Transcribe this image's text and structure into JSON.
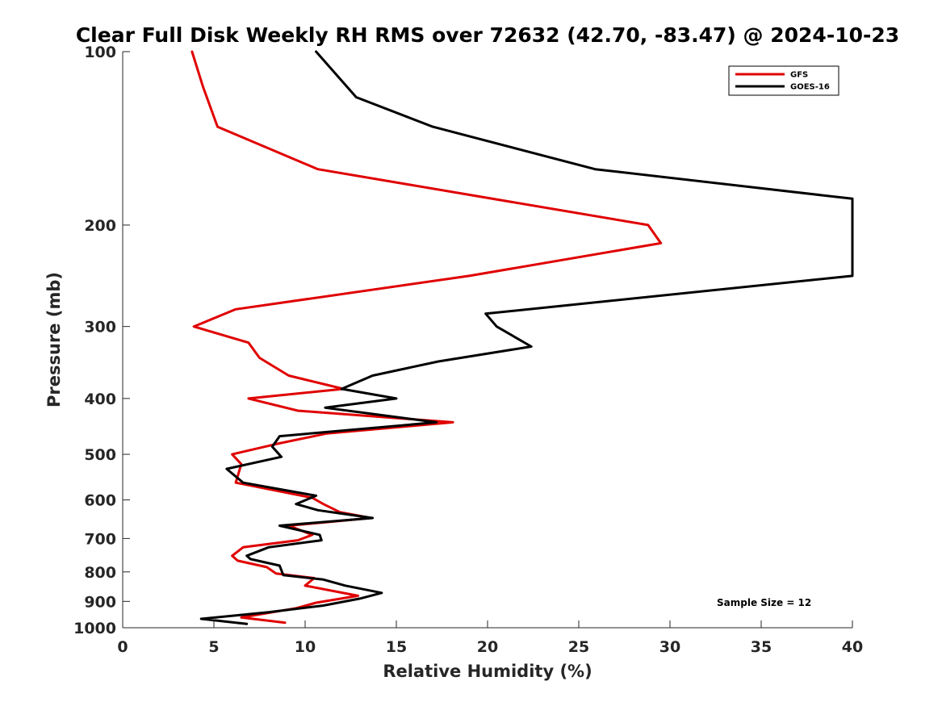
{
  "chart_data": {
    "type": "line",
    "title": "Clear Full Disk Weekly RH RMS over 72632 (42.70, -83.47) @ 2024-10-23",
    "xlabel": "Relative Humidity (%)",
    "ylabel": "Pressure (mb)",
    "xlim": [
      0,
      40
    ],
    "ylim": [
      100,
      1000
    ],
    "y_scale": "log",
    "y_reversed": true,
    "x_ticks": [
      0,
      5,
      10,
      15,
      20,
      25,
      30,
      35,
      40
    ],
    "y_ticks": [
      100,
      200,
      300,
      400,
      500,
      600,
      700,
      800,
      900,
      1000
    ],
    "grid": false,
    "legend_position": "top-right",
    "annotation": "Sample Size = 12",
    "series": [
      {
        "name": "GFS",
        "color": "#e00000",
        "points": [
          [
            3.8,
            100
          ],
          [
            4.4,
            115
          ],
          [
            5.2,
            135
          ],
          [
            10.7,
            160
          ],
          [
            28.8,
            200
          ],
          [
            29.5,
            215
          ],
          [
            19.0,
            245
          ],
          [
            6.2,
            280
          ],
          [
            3.9,
            300
          ],
          [
            6.9,
            320
          ],
          [
            7.5,
            340
          ],
          [
            9.1,
            365
          ],
          [
            12.1,
            385
          ],
          [
            6.9,
            400
          ],
          [
            9.6,
            420
          ],
          [
            18.1,
            440
          ],
          [
            11.2,
            460
          ],
          [
            8.4,
            480
          ],
          [
            6.0,
            500
          ],
          [
            6.5,
            520
          ],
          [
            6.2,
            560
          ],
          [
            10.4,
            595
          ],
          [
            11.0,
            610
          ],
          [
            11.9,
            630
          ],
          [
            13.6,
            645
          ],
          [
            9.1,
            665
          ],
          [
            10.4,
            690
          ],
          [
            9.6,
            705
          ],
          [
            6.6,
            725
          ],
          [
            6.0,
            750
          ],
          [
            6.3,
            765
          ],
          [
            7.9,
            785
          ],
          [
            8.4,
            805
          ],
          [
            10.5,
            820
          ],
          [
            10.0,
            845
          ],
          [
            12.9,
            880
          ],
          [
            10.6,
            905
          ],
          [
            9.5,
            925
          ],
          [
            6.5,
            960
          ],
          [
            8.9,
            980
          ]
        ]
      },
      {
        "name": "GOES-16",
        "color": "#000000",
        "points": [
          [
            10.6,
            100
          ],
          [
            12.8,
            120
          ],
          [
            17.0,
            135
          ],
          [
            25.9,
            160
          ],
          [
            40.0,
            180
          ],
          [
            40.0,
            245
          ],
          [
            19.9,
            285
          ],
          [
            20.5,
            300
          ],
          [
            22.4,
            325
          ],
          [
            17.3,
            345
          ],
          [
            13.7,
            365
          ],
          [
            12.0,
            385
          ],
          [
            15.0,
            400
          ],
          [
            11.1,
            415
          ],
          [
            17.2,
            440
          ],
          [
            8.6,
            465
          ],
          [
            8.2,
            485
          ],
          [
            8.7,
            505
          ],
          [
            5.7,
            530
          ],
          [
            6.6,
            560
          ],
          [
            10.6,
            590
          ],
          [
            9.5,
            610
          ],
          [
            10.7,
            625
          ],
          [
            13.7,
            645
          ],
          [
            8.6,
            665
          ],
          [
            10.8,
            690
          ],
          [
            10.9,
            705
          ],
          [
            8.0,
            725
          ],
          [
            6.8,
            750
          ],
          [
            7.0,
            760
          ],
          [
            8.6,
            780
          ],
          [
            8.8,
            810
          ],
          [
            11.0,
            825
          ],
          [
            12.2,
            845
          ],
          [
            14.2,
            870
          ],
          [
            13.0,
            890
          ],
          [
            11.0,
            915
          ],
          [
            8.0,
            940
          ],
          [
            4.3,
            965
          ],
          [
            6.8,
            985
          ]
        ]
      }
    ]
  }
}
